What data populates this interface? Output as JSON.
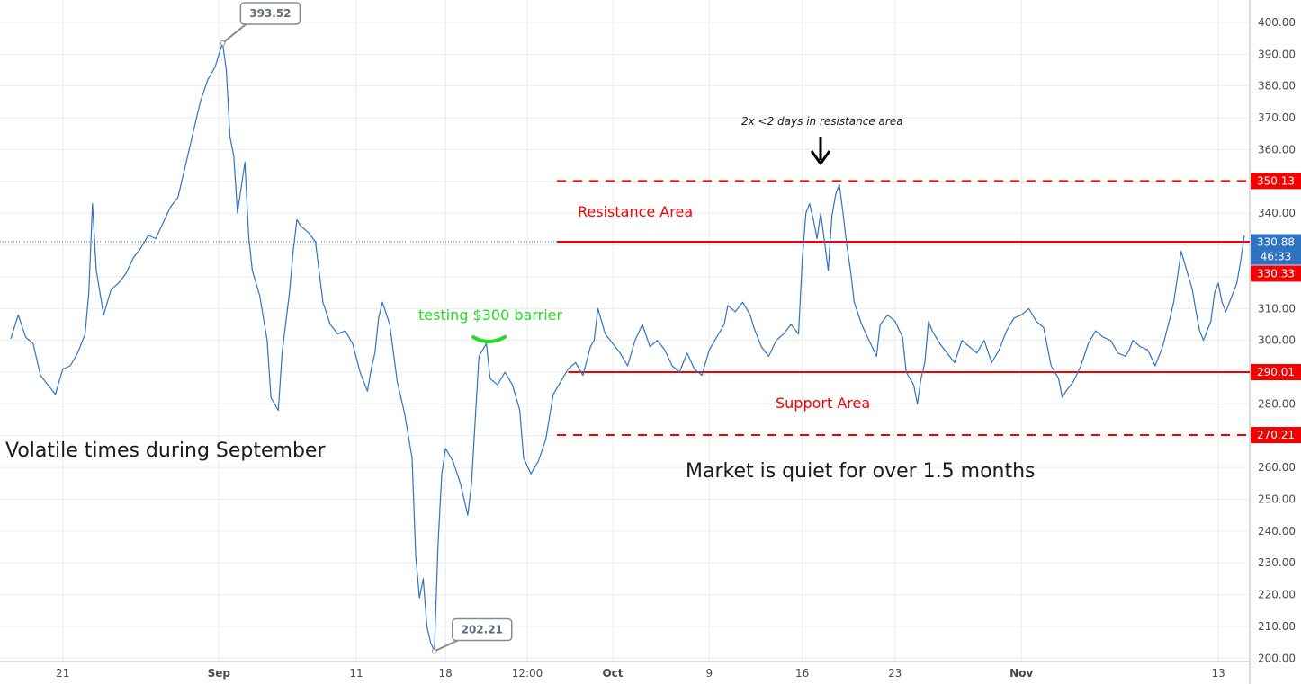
{
  "chart_data": {
    "type": "line",
    "y_ticks": [
      "400.00",
      "390.00",
      "380.00",
      "370.00",
      "360.00",
      "350.00",
      "340.00",
      "330.00",
      "320.00",
      "310.00",
      "300.00",
      "290.00",
      "280.00",
      "270.00",
      "260.00",
      "250.00",
      "240.00",
      "230.00",
      "220.00",
      "210.00",
      "200.00"
    ],
    "x_ticks": [
      {
        "label": "21",
        "bold": false
      },
      {
        "label": "Sep",
        "bold": true
      },
      {
        "label": "11",
        "bold": false
      },
      {
        "label": "18",
        "bold": false
      },
      {
        "label": "12:00",
        "bold": false
      },
      {
        "label": "Oct",
        "bold": true
      },
      {
        "label": "9",
        "bold": false
      },
      {
        "label": "16",
        "bold": false
      },
      {
        "label": "23",
        "bold": false
      },
      {
        "label": "Nov",
        "bold": true
      },
      {
        "label": "13",
        "bold": false
      }
    ],
    "ylim": [
      200,
      402
    ],
    "series": [
      {
        "points": [
          [
            0,
            300.5
          ],
          [
            2,
            308
          ],
          [
            4,
            301
          ],
          [
            6,
            299
          ],
          [
            8,
            289
          ],
          [
            10,
            286
          ],
          [
            12,
            283
          ],
          [
            14,
            291
          ],
          [
            16,
            292
          ],
          [
            18,
            296
          ],
          [
            20,
            302
          ],
          [
            21,
            315
          ],
          [
            22,
            343
          ],
          [
            23,
            322
          ],
          [
            25,
            308
          ],
          [
            27,
            316
          ],
          [
            29,
            318
          ],
          [
            31,
            321
          ],
          [
            33,
            326
          ],
          [
            35,
            329
          ],
          [
            37,
            333
          ],
          [
            39,
            332
          ],
          [
            41,
            337
          ],
          [
            43,
            342
          ],
          [
            45,
            345
          ],
          [
            47,
            355
          ],
          [
            49,
            365
          ],
          [
            51,
            375
          ],
          [
            53,
            382
          ],
          [
            55,
            386
          ],
          [
            56,
            390
          ],
          [
            57,
            393.52
          ],
          [
            58,
            385
          ],
          [
            59,
            364
          ],
          [
            60,
            358
          ],
          [
            61,
            340
          ],
          [
            62,
            348
          ],
          [
            63,
            356
          ],
          [
            64,
            333
          ],
          [
            65,
            322
          ],
          [
            67,
            314
          ],
          [
            69,
            300
          ],
          [
            70,
            282
          ],
          [
            72,
            278
          ],
          [
            73,
            296
          ],
          [
            75,
            315
          ],
          [
            76,
            328
          ],
          [
            77,
            338
          ],
          [
            78,
            336
          ],
          [
            80,
            334
          ],
          [
            82,
            331
          ],
          [
            84,
            312
          ],
          [
            86,
            305
          ],
          [
            88,
            302
          ],
          [
            90,
            303
          ],
          [
            92,
            299
          ],
          [
            94,
            290
          ],
          [
            96,
            284
          ],
          [
            97,
            291
          ],
          [
            98,
            296
          ],
          [
            99,
            307
          ],
          [
            100,
            312
          ],
          [
            102,
            305
          ],
          [
            104,
            287
          ],
          [
            106,
            277
          ],
          [
            108,
            263
          ],
          [
            109,
            232
          ],
          [
            110,
            219
          ],
          [
            111,
            225
          ],
          [
            112,
            210
          ],
          [
            113,
            205
          ],
          [
            114,
            202.21
          ],
          [
            115,
            236
          ],
          [
            116,
            258
          ],
          [
            117,
            266
          ],
          [
            119,
            262
          ],
          [
            121,
            255
          ],
          [
            123,
            245
          ],
          [
            124,
            255
          ],
          [
            125,
            275
          ],
          [
            126,
            295
          ],
          [
            127,
            297
          ],
          [
            128,
            299
          ],
          [
            129,
            288
          ],
          [
            131,
            286
          ],
          [
            133,
            290
          ],
          [
            135,
            286
          ],
          [
            137,
            278
          ],
          [
            138,
            263
          ],
          [
            140,
            258
          ],
          [
            142,
            262
          ],
          [
            144,
            269
          ],
          [
            146,
            283
          ],
          [
            148,
            287
          ],
          [
            150,
            291
          ],
          [
            152,
            293
          ],
          [
            154,
            289
          ],
          [
            156,
            298
          ],
          [
            157,
            300
          ],
          [
            158,
            310
          ],
          [
            160,
            302
          ],
          [
            162,
            299
          ],
          [
            164,
            296
          ],
          [
            166,
            292
          ],
          [
            168,
            300
          ],
          [
            170,
            305
          ],
          [
            172,
            298
          ],
          [
            174,
            300
          ],
          [
            176,
            297
          ],
          [
            178,
            292
          ],
          [
            180,
            290
          ],
          [
            182,
            296
          ],
          [
            184,
            291
          ],
          [
            186,
            289
          ],
          [
            188,
            297
          ],
          [
            190,
            301
          ],
          [
            192,
            305
          ],
          [
            193,
            311
          ],
          [
            195,
            309
          ],
          [
            197,
            312
          ],
          [
            199,
            308
          ],
          [
            200,
            304
          ],
          [
            202,
            298
          ],
          [
            204,
            295
          ],
          [
            206,
            300
          ],
          [
            208,
            302
          ],
          [
            210,
            305
          ],
          [
            212,
            302
          ],
          [
            213,
            325
          ],
          [
            214,
            340
          ],
          [
            215,
            343
          ],
          [
            216,
            338
          ],
          [
            217,
            332
          ],
          [
            218,
            340
          ],
          [
            219,
            331
          ],
          [
            220,
            322
          ],
          [
            221,
            339
          ],
          [
            222,
            346
          ],
          [
            223,
            349
          ],
          [
            224,
            340
          ],
          [
            225,
            330
          ],
          [
            226,
            322
          ],
          [
            227,
            312
          ],
          [
            229,
            305
          ],
          [
            231,
            300
          ],
          [
            233,
            295
          ],
          [
            234,
            305
          ],
          [
            236,
            308
          ],
          [
            238,
            306
          ],
          [
            240,
            301
          ],
          [
            241,
            290
          ],
          [
            243,
            286
          ],
          [
            244,
            280
          ],
          [
            245,
            288
          ],
          [
            246,
            293
          ],
          [
            247,
            306
          ],
          [
            248,
            303
          ],
          [
            250,
            299
          ],
          [
            252,
            296
          ],
          [
            254,
            293
          ],
          [
            256,
            300
          ],
          [
            258,
            298
          ],
          [
            260,
            296
          ],
          [
            262,
            300
          ],
          [
            264,
            293
          ],
          [
            266,
            297
          ],
          [
            268,
            303
          ],
          [
            270,
            307
          ],
          [
            272,
            308
          ],
          [
            274,
            310
          ],
          [
            276,
            306
          ],
          [
            278,
            304
          ],
          [
            279,
            298
          ],
          [
            280,
            292
          ],
          [
            282,
            288
          ],
          [
            283,
            282
          ],
          [
            284,
            284
          ],
          [
            286,
            287
          ],
          [
            288,
            292
          ],
          [
            290,
            299
          ],
          [
            292,
            303
          ],
          [
            294,
            301
          ],
          [
            296,
            300
          ],
          [
            298,
            296
          ],
          [
            300,
            295
          ],
          [
            301,
            297
          ],
          [
            302,
            300
          ],
          [
            304,
            298
          ],
          [
            306,
            297
          ],
          [
            308,
            292
          ],
          [
            310,
            298
          ],
          [
            312,
            307
          ],
          [
            313,
            312
          ],
          [
            314,
            320
          ],
          [
            315,
            328
          ],
          [
            316,
            324
          ],
          [
            318,
            316
          ],
          [
            319,
            309
          ],
          [
            320,
            303
          ],
          [
            321,
            300
          ],
          [
            323,
            306
          ],
          [
            324,
            315
          ],
          [
            325,
            318
          ],
          [
            326,
            312
          ],
          [
            327,
            309
          ],
          [
            328,
            312
          ],
          [
            330,
            318
          ],
          [
            331,
            325
          ],
          [
            332,
            333
          ]
        ]
      }
    ],
    "x_ticks_at": [
      14,
      56,
      93,
      117,
      139,
      162,
      188,
      213,
      238,
      272,
      325
    ],
    "current_price_line": 331,
    "price_badges": [
      {
        "value": "350.13",
        "price": 350.13,
        "color": "#f40000"
      },
      {
        "value": "330.88",
        "price": 330.88,
        "color": "#2f73c3"
      },
      {
        "value": "46:33",
        "price": 326.3,
        "color": "#2f73c3"
      },
      {
        "value": "330.33",
        "price": 321.0,
        "color": "#f40000"
      },
      {
        "value": "290.01",
        "price": 290.01,
        "color": "#f40000"
      },
      {
        "value": "270.21",
        "price": 270.21,
        "color": "#f40000"
      }
    ],
    "callouts": [
      {
        "label": "393.52",
        "price": 393.52,
        "xi": 57
      },
      {
        "label": "202.21",
        "price": 202.21,
        "xi": 114
      }
    ],
    "levels": [
      {
        "price": 350.13,
        "style": "dashed",
        "from_xi": 147
      },
      {
        "price": 331.0,
        "style": "solid",
        "from_xi": 147
      },
      {
        "price": 290.01,
        "style": "solid",
        "from_xi": 150
      },
      {
        "price": 270.21,
        "style": "dashed",
        "from_xi": 147
      }
    ],
    "annotations": {
      "resistance_area": "Resistance Area",
      "support_area": "Support Area",
      "testing_barrier": "testing $300 barrier",
      "resistance_note": "2x <2 days in resistance area",
      "volatile_note": "Volatile times during September",
      "quiet_note": "Market is quiet for over 1.5 months"
    },
    "colors": {
      "series": "#2f73c3",
      "levels": "#f40000",
      "testing_text": "#22dd22",
      "resistance_text": "#f40000",
      "note_text": "#1a1a1a",
      "grid": "#ececec"
    }
  }
}
